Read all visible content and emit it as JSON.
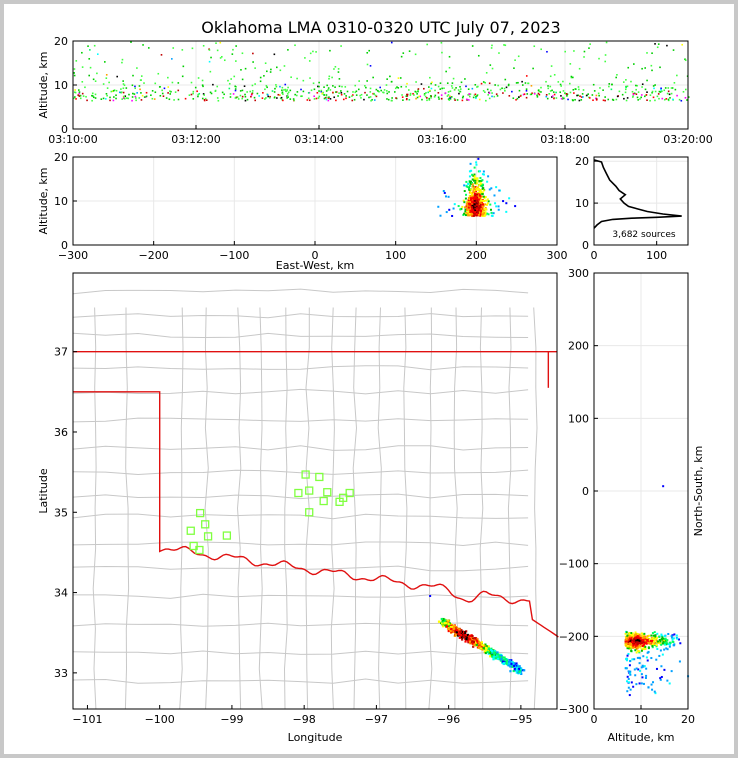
{
  "title": "Oklahoma LMA 0310-0320 UTC July 07, 2023",
  "chart_data": [
    {
      "id": "time-height",
      "type": "scatter",
      "ylabel": "Altitude, km",
      "xlim": [
        "03:10:00",
        "03:20:00"
      ],
      "ylim": [
        0,
        20
      ],
      "xticks": [
        "03:10:00",
        "03:12:00",
        "03:14:00",
        "03:16:00",
        "03:18:00",
        "03:20:00"
      ],
      "yticks": [
        "0",
        "10",
        "20"
      ],
      "grid": true
    },
    {
      "id": "ew-altitude",
      "type": "heatmap",
      "xlabel": "East-West, km",
      "ylabel": "Altitude, km",
      "xlim": [
        -300,
        300
      ],
      "ylim": [
        0,
        20
      ],
      "xticks": [
        "−300",
        "−200",
        "−100",
        "0",
        "100",
        "200",
        "300"
      ],
      "yticks": [
        "0",
        "10",
        "20"
      ],
      "grid": true
    },
    {
      "id": "altitude-histogram",
      "type": "line",
      "annotation": "3,682 sources",
      "xlim": [
        0,
        150
      ],
      "ylim": [
        0,
        21
      ],
      "xticks": [
        "0",
        "100"
      ],
      "yticks": [
        "0",
        "10",
        "20"
      ],
      "profile": [
        [
          0,
          4
        ],
        [
          5,
          4.8
        ],
        [
          12,
          5.6
        ],
        [
          30,
          6.1
        ],
        [
          60,
          6.4
        ],
        [
          100,
          6.6
        ],
        [
          140,
          6.9
        ],
        [
          110,
          7.4
        ],
        [
          85,
          8
        ],
        [
          70,
          8.6
        ],
        [
          55,
          9.2
        ],
        [
          48,
          10
        ],
        [
          42,
          11
        ],
        [
          50,
          12
        ],
        [
          40,
          13
        ],
        [
          35,
          14
        ],
        [
          25,
          15.5
        ],
        [
          20,
          17
        ],
        [
          15,
          18.5
        ],
        [
          12,
          19.8
        ],
        [
          0,
          20.3
        ]
      ]
    },
    {
      "id": "plan-view",
      "type": "scatter",
      "xlabel": "Longitude",
      "ylabel": "Latitude",
      "xlim": [
        -101.2,
        -94.5
      ],
      "ylim": [
        32.55,
        37.98
      ],
      "xticks": [
        "−101",
        "−100",
        "−99",
        "−98",
        "−97",
        "−96",
        "−95"
      ],
      "yticks": [
        "33",
        "34",
        "35",
        "36",
        "37"
      ],
      "stations": [
        [
          -97.98,
          35.47
        ],
        [
          -97.79,
          35.44
        ],
        [
          -98.08,
          35.24
        ],
        [
          -97.93,
          35.27
        ],
        [
          -97.68,
          35.25
        ],
        [
          -97.73,
          35.14
        ],
        [
          -97.37,
          35.24
        ],
        [
          -97.46,
          35.18
        ],
        [
          -97.51,
          35.13
        ],
        [
          -97.93,
          35.0
        ],
        [
          -99.44,
          34.99
        ],
        [
          -99.37,
          34.85
        ],
        [
          -99.57,
          34.77
        ],
        [
          -99.33,
          34.7
        ],
        [
          -99.07,
          34.71
        ],
        [
          -99.53,
          34.58
        ],
        [
          -99.45,
          34.53
        ]
      ],
      "colors": {
        "state_border": "#e01010",
        "counties": "#c8c8c8",
        "station": "#80ff40"
      }
    },
    {
      "id": "altitude-ns",
      "type": "heatmap",
      "xlabel": "Altitude, km",
      "ylabel": "North-South, km",
      "xlim": [
        0,
        20
      ],
      "ylim": [
        -300,
        300
      ],
      "xticks": [
        "0",
        "10",
        "20"
      ],
      "yticks": [
        "−300",
        "−200",
        "−100",
        "0",
        "100",
        "200",
        "300"
      ],
      "grid": true
    }
  ]
}
